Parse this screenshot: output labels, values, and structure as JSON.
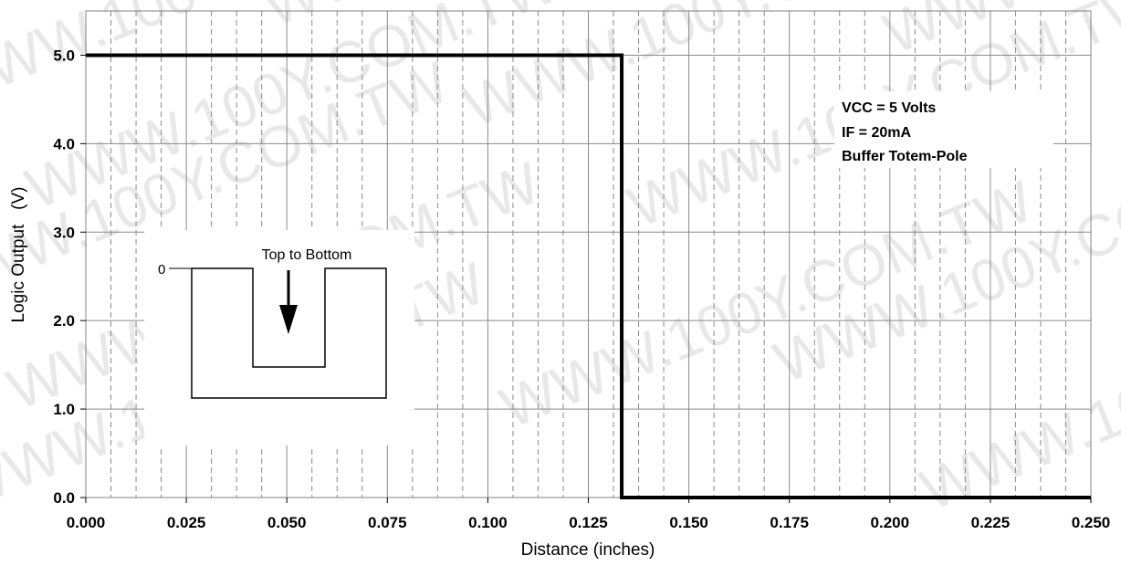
{
  "chart_data": {
    "type": "line",
    "title": "",
    "xlabel": "Distance (inches)",
    "ylabel": "Logic Output   (V)",
    "xlim": [
      0,
      0.25
    ],
    "ylim": [
      0,
      5.5
    ],
    "x_ticks": [
      "0.000",
      "0.025",
      "0.050",
      "0.075",
      "0.100",
      "0.125",
      "0.150",
      "0.175",
      "0.200",
      "0.225",
      "0.250"
    ],
    "x_tick_values": [
      0,
      0.025,
      0.05,
      0.075,
      0.1,
      0.125,
      0.15,
      0.175,
      0.2,
      0.225,
      0.25
    ],
    "y_ticks": [
      "0.0",
      "1.0",
      "2.0",
      "3.0",
      "4.0",
      "5.0"
    ],
    "y_tick_values": [
      0,
      1,
      2,
      3,
      4,
      5
    ],
    "grid": true,
    "series": [
      {
        "x": [
          0,
          0.1333,
          0.1333,
          0.25
        ],
        "y": [
          5.0,
          5.0,
          0.0,
          0.0
        ],
        "color": "#000000"
      }
    ],
    "annotations": [
      "VCC = 5 Volts",
      "IF = 20mA",
      "Buffer Totem-Pole"
    ],
    "inset": {
      "label": "Top to Bottom",
      "zero_label": "0"
    },
    "watermark": "WWW.100Y.COM.TW"
  }
}
